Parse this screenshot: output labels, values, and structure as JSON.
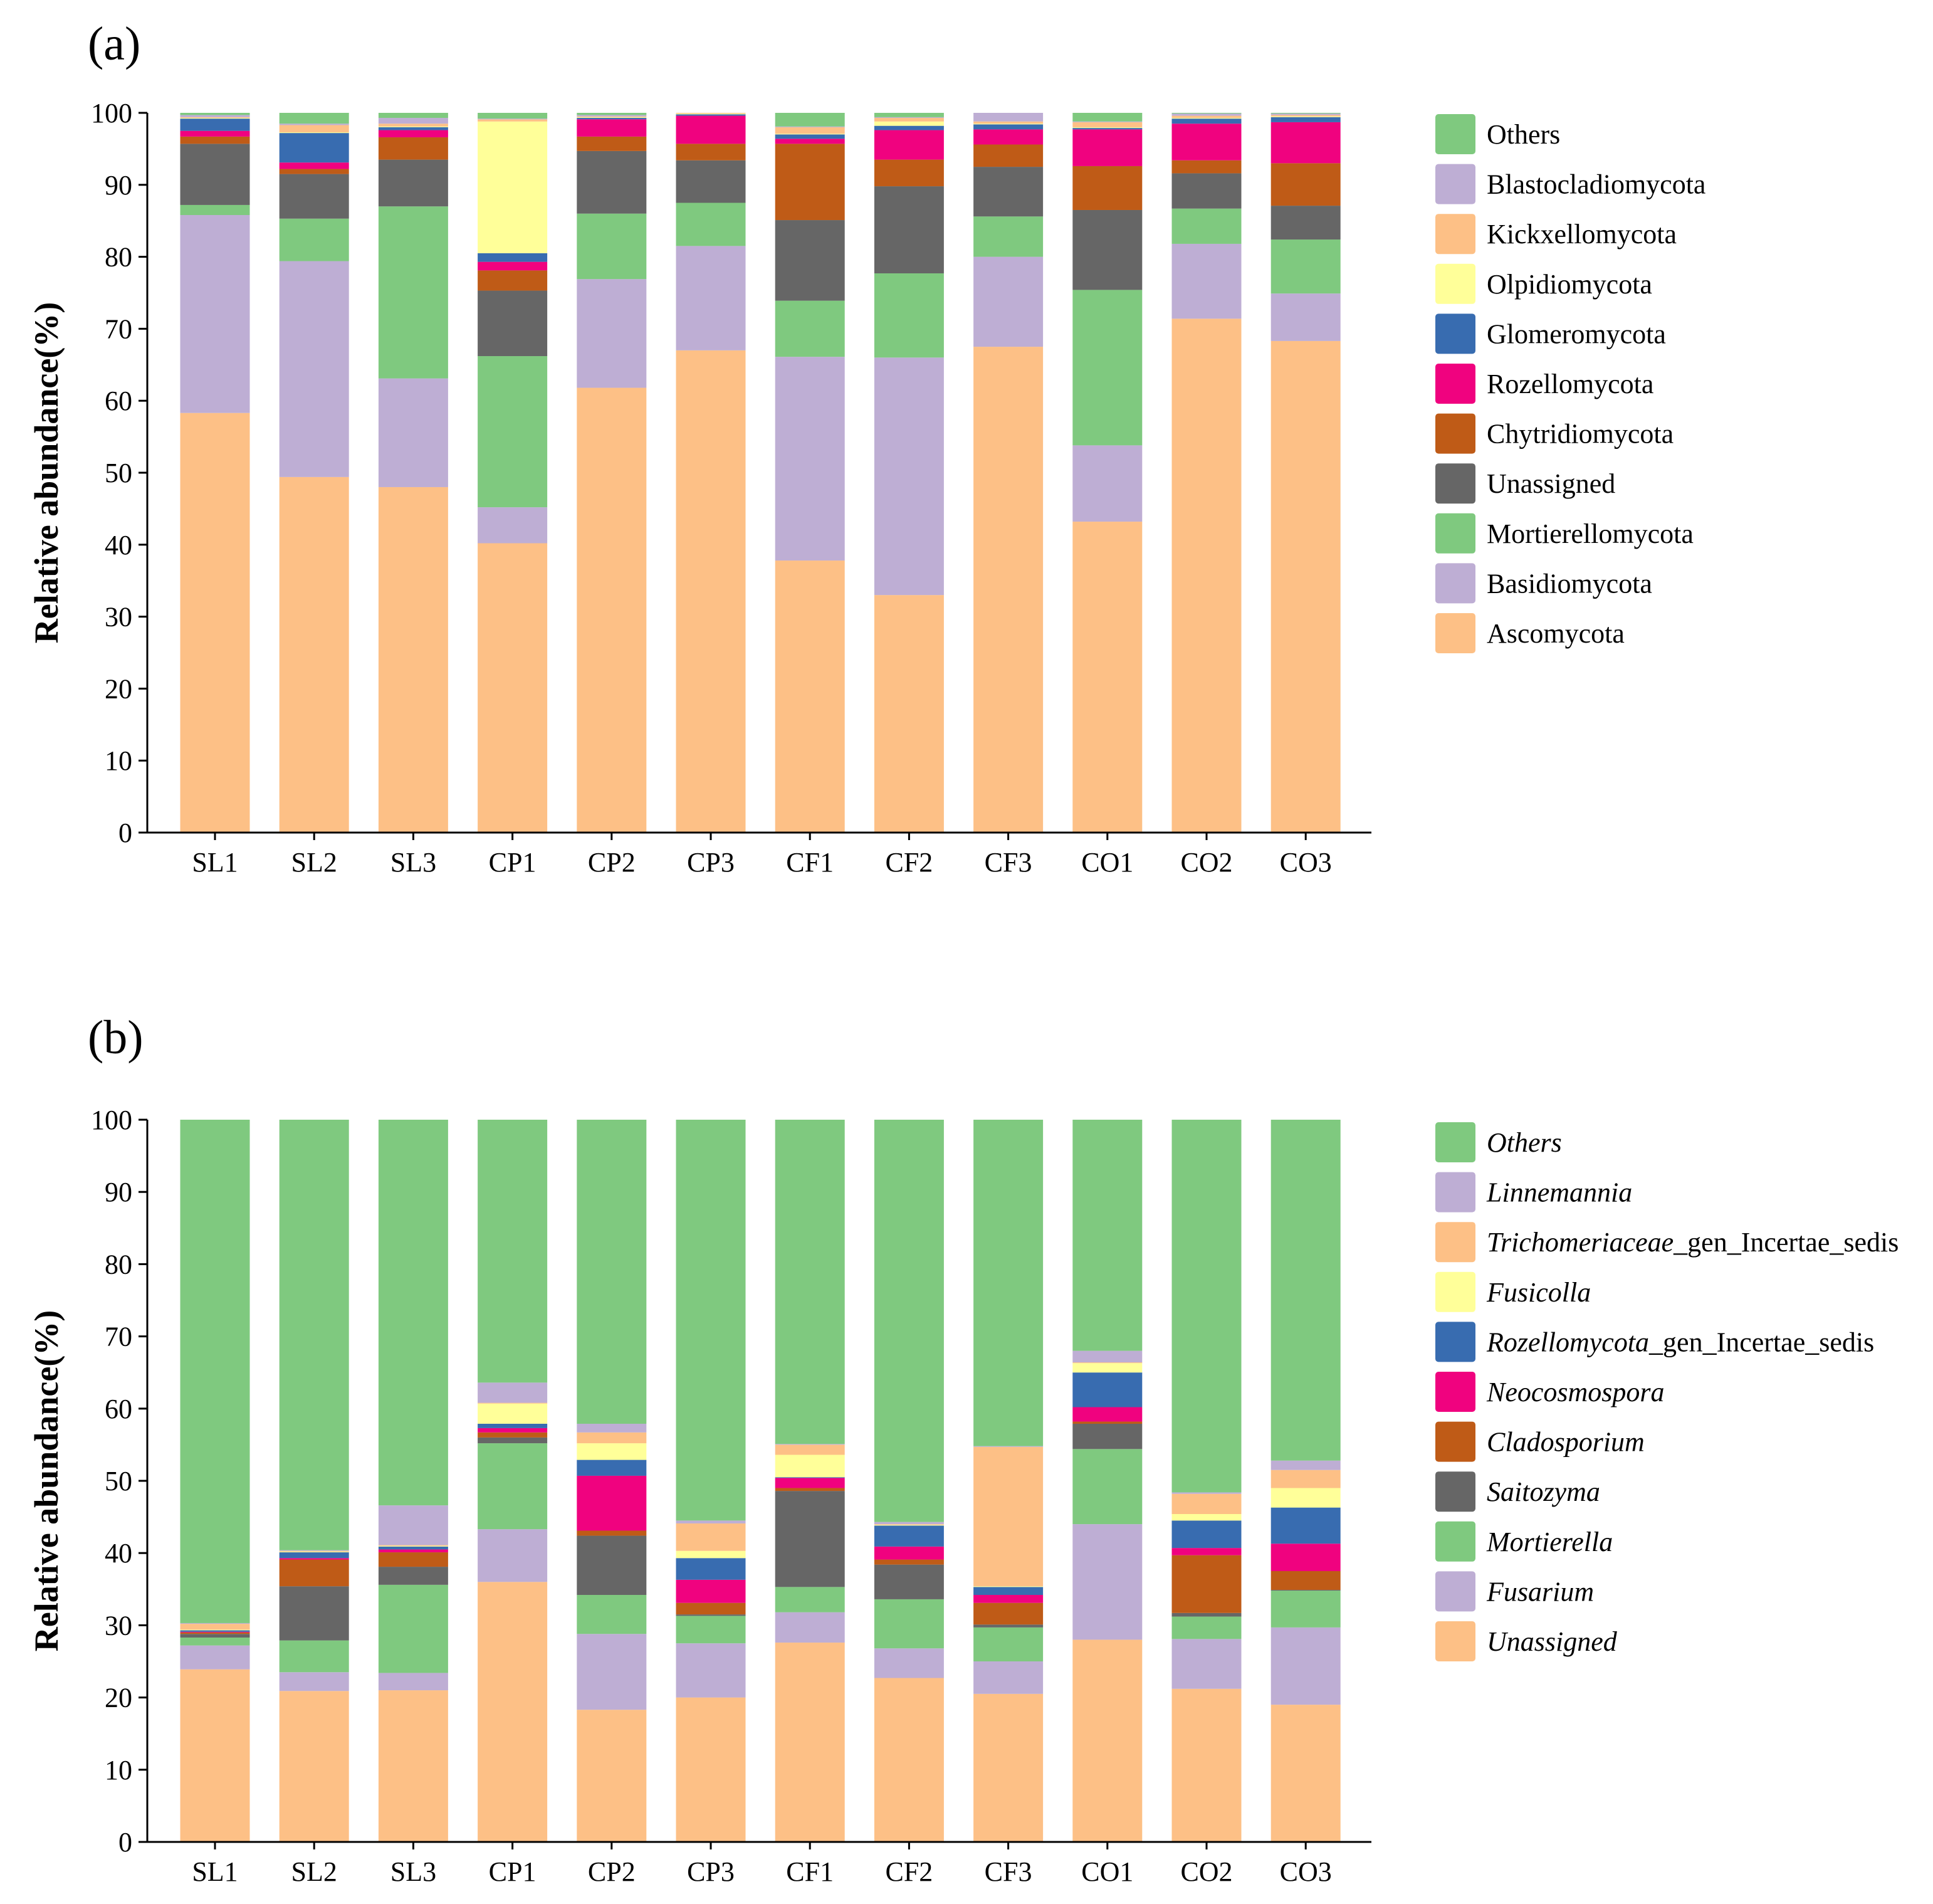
{
  "colors": {
    "Others": "#7fc97f",
    "Blastocladiomycota": "#beaed4",
    "Kickxellomycota": "#fdc086",
    "Olpidiomycota": "#ffff99",
    "Glomeromycota": "#386cb0",
    "Rozellomycota": "#f0027f",
    "Chytridiomycota": "#bf5b17",
    "Unassigned": "#666666",
    "Mortierellomycota": "#7fc97f",
    "Basidiomycota": "#beaed4",
    "Ascomycota": "#fdc086"
  },
  "chart_data": [
    {
      "type": "bar",
      "stacked": true,
      "panel_label": "(a)",
      "ylabel": "Relative abundance(%)",
      "xlabel": "",
      "ylim": [
        0,
        100
      ],
      "yticks": [
        "0",
        "10",
        "20",
        "30",
        "40",
        "50",
        "60",
        "70",
        "80",
        "90",
        "100"
      ],
      "legend_position": "right",
      "categories": [
        "SL1",
        "SL2",
        "SL3",
        "CP1",
        "CP2",
        "CP3",
        "CF1",
        "CF2",
        "CF3",
        "CO1",
        "CO2",
        "CO3"
      ],
      "series": [
        {
          "name": "Ascomycota",
          "italic": false,
          "color": "#fdc086",
          "values": [
            58.3,
            49.4,
            48.0,
            40.2,
            61.8,
            67.0,
            37.8,
            33.0,
            67.5,
            43.2,
            71.4,
            68.3
          ]
        },
        {
          "name": "Basidiomycota",
          "italic": false,
          "color": "#beaed4",
          "values": [
            27.5,
            30.0,
            15.1,
            5.0,
            15.1,
            14.5,
            28.3,
            33.0,
            12.5,
            10.6,
            10.4,
            6.6
          ]
        },
        {
          "name": "Mortierellomycota",
          "italic": false,
          "color": "#7fc97f",
          "values": [
            1.4,
            5.9,
            23.9,
            21.0,
            9.1,
            6.0,
            7.8,
            11.7,
            5.6,
            21.6,
            4.9,
            7.5
          ]
        },
        {
          "name": "Unassigned",
          "italic": false,
          "color": "#666666",
          "values": [
            8.5,
            6.2,
            6.5,
            9.1,
            8.7,
            5.9,
            11.2,
            12.1,
            6.9,
            11.1,
            4.9,
            4.7
          ]
        },
        {
          "name": "Chytridiomycota",
          "italic": false,
          "color": "#bf5b17",
          "values": [
            1.0,
            0.7,
            3.1,
            2.8,
            2.0,
            2.3,
            10.6,
            3.7,
            3.1,
            6.1,
            1.8,
            5.9
          ]
        },
        {
          "name": "Rozellomycota",
          "italic": false,
          "color": "#f0027f",
          "values": [
            0.8,
            0.9,
            1.0,
            1.2,
            2.4,
            3.9,
            0.7,
            4.1,
            2.1,
            5.1,
            5.1,
            5.7
          ]
        },
        {
          "name": "Glomeromycota",
          "italic": false,
          "color": "#386cb0",
          "values": [
            1.7,
            4.1,
            0.4,
            1.2,
            0.2,
            0.2,
            0.6,
            0.6,
            0.7,
            0.2,
            0.7,
            0.7
          ]
        },
        {
          "name": "Olpidiomycota",
          "italic": false,
          "color": "#ffff99",
          "values": [
            0.1,
            0.1,
            0.1,
            18.3,
            0.1,
            0.1,
            0.1,
            0.6,
            0.1,
            0.1,
            0.1,
            0.1
          ]
        },
        {
          "name": "Kickxellomycota",
          "italic": false,
          "color": "#fdc086",
          "values": [
            0.1,
            1.0,
            0.4,
            0.3,
            0.1,
            0.1,
            0.9,
            0.5,
            0.3,
            0.7,
            0.3,
            0.2
          ]
        },
        {
          "name": "Blastocladiomycota",
          "italic": false,
          "color": "#beaed4",
          "values": [
            0.3,
            0.2,
            0.8,
            0.1,
            0.2,
            0.1,
            0.1,
            0.1,
            1.2,
            0.1,
            0.3,
            0.2
          ]
        },
        {
          "name": "Others",
          "italic": false,
          "color": "#7fc97f",
          "values": [
            0.3,
            1.5,
            0.7,
            0.8,
            0.3,
            0.0,
            1.9,
            0.6,
            0.0,
            1.2,
            0.1,
            0.1
          ]
        }
      ]
    },
    {
      "type": "bar",
      "stacked": true,
      "panel_label": "(b)",
      "ylabel": "Relative abundance(%)",
      "xlabel": "",
      "ylim": [
        0,
        100
      ],
      "yticks": [
        "0",
        "10",
        "20",
        "30",
        "40",
        "50",
        "60",
        "70",
        "80",
        "90",
        "100"
      ],
      "legend_position": "right",
      "categories": [
        "SL1",
        "SL2",
        "SL3",
        "CP1",
        "CP2",
        "CP3",
        "CF1",
        "CF2",
        "CF3",
        "CO1",
        "CO2",
        "CO3"
      ],
      "series": [
        {
          "name": "Unassigned",
          "italic": true,
          "color": "#fdc086",
          "values": [
            23.9,
            20.9,
            21.0,
            36.0,
            18.3,
            20.0,
            27.6,
            22.7,
            20.5,
            28.0,
            21.2,
            19.0
          ]
        },
        {
          "name": "Fusarium",
          "italic": true,
          "color": "#beaed4",
          "values": [
            3.3,
            2.6,
            2.4,
            7.3,
            10.5,
            7.5,
            4.2,
            4.1,
            4.5,
            16.0,
            6.9,
            10.7
          ]
        },
        {
          "name": "Mortierella",
          "italic": true,
          "color": "#7fc97f",
          "values": [
            1.1,
            4.4,
            12.2,
            11.9,
            5.4,
            3.8,
            3.5,
            6.8,
            4.7,
            10.4,
            3.1,
            5.1
          ]
        },
        {
          "name": "Saitozyma",
          "italic": true,
          "color": "#666666",
          "values": [
            0.5,
            7.5,
            2.5,
            0.8,
            8.2,
            0.2,
            13.3,
            4.8,
            0.4,
            3.5,
            0.5,
            0.1
          ]
        },
        {
          "name": "Cladosporium",
          "italic": true,
          "color": "#bf5b17",
          "values": [
            0.2,
            3.7,
            2.0,
            0.7,
            0.7,
            1.6,
            0.4,
            0.7,
            3.0,
            0.3,
            8.0,
            2.6
          ]
        },
        {
          "name": "Neocosmospora",
          "italic": true,
          "color": "#f0027f",
          "values": [
            0.1,
            0.2,
            0.4,
            0.6,
            7.6,
            3.2,
            1.4,
            1.8,
            1.1,
            2.0,
            1.0,
            3.8
          ]
        },
        {
          "name": "Rozellomycota_gen_Incertae_sedis",
          "italic": true,
          "italic_part": "Rozellomycota",
          "color": "#386cb0",
          "values": [
            0.2,
            0.8,
            0.4,
            0.6,
            2.2,
            3.0,
            0.1,
            2.9,
            1.1,
            4.8,
            3.8,
            5.0
          ]
        },
        {
          "name": "Fusicolla",
          "italic": true,
          "color": "#ffff99",
          "values": [
            0.1,
            0.1,
            0.1,
            2.8,
            2.3,
            1.0,
            3.1,
            0.1,
            0.1,
            1.3,
            0.9,
            2.7
          ]
        },
        {
          "name": "Trichomeriaceae_gen_Incertae_sedis",
          "italic": true,
          "italic_part": "Trichomeriaceae",
          "color": "#fdc086",
          "values": [
            0.8,
            0.1,
            0.1,
            0.1,
            1.5,
            3.8,
            1.4,
            0.1,
            19.3,
            0.1,
            2.8,
            2.5
          ]
        },
        {
          "name": "Linnemannia",
          "italic": true,
          "color": "#beaed4",
          "values": [
            0.1,
            0.1,
            5.5,
            2.8,
            1.2,
            0.4,
            0.1,
            0.3,
            0.1,
            1.6,
            0.2,
            1.3
          ]
        },
        {
          "name": "Others",
          "italic": true,
          "color": "#7fc97f",
          "values": [
            69.7,
            59.6,
            53.4,
            36.4,
            42.1,
            55.5,
            44.9,
            55.7,
            45.2,
            32.0,
            51.6,
            47.2
          ]
        }
      ]
    }
  ]
}
